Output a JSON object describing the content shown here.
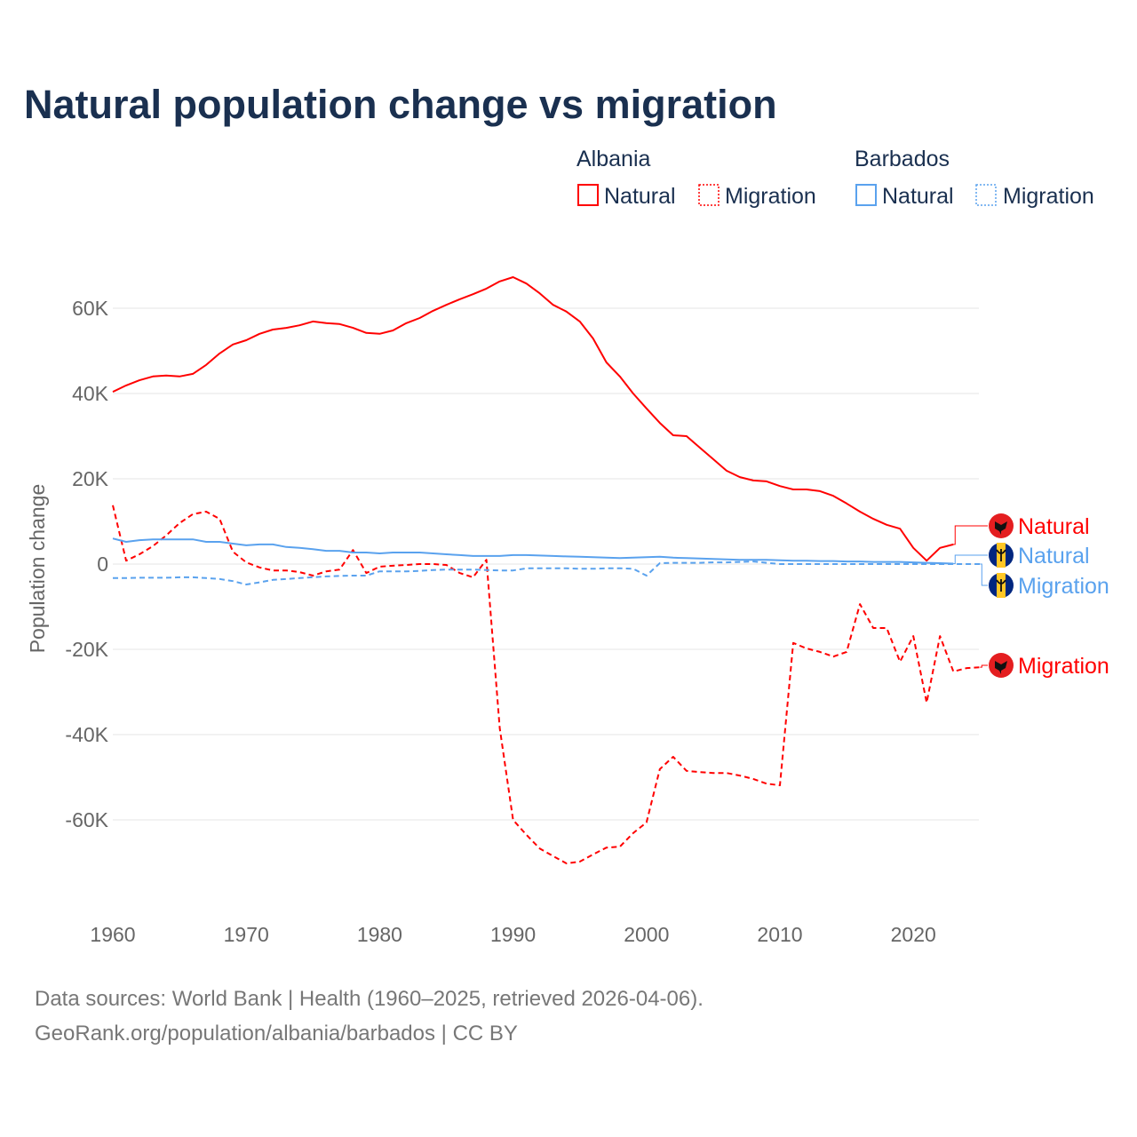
{
  "chart_data": {
    "type": "line",
    "title": "Natural population change vs migration",
    "ylabel": "Population change",
    "xlabel": "",
    "xlim": [
      1960,
      2025
    ],
    "ylim": [
      -80000,
      70000
    ],
    "y_ticks": [
      60000,
      40000,
      20000,
      0,
      -20000,
      -40000,
      -60000
    ],
    "y_tick_labels": [
      "60K",
      "40K",
      "20K",
      "0",
      "-20K",
      "-40K",
      "-60K"
    ],
    "x_ticks": [
      1960,
      1970,
      1980,
      1990,
      2000,
      2010,
      2020
    ],
    "x_tick_labels": [
      "1960",
      "1970",
      "1980",
      "1990",
      "2000",
      "2010",
      "2020"
    ],
    "grid": true,
    "legend": {
      "placement": "top-right",
      "groups": [
        {
          "country": "Albania",
          "entries": [
            "Natural",
            "Migration"
          ]
        },
        {
          "country": "Barbados",
          "entries": [
            "Natural",
            "Migration"
          ]
        }
      ]
    },
    "series": [
      {
        "name": "Natural",
        "country": "Albania",
        "color": "#ff0000",
        "dash": false,
        "start": 1960,
        "values": [
          40.4,
          41.9,
          43.1,
          44,
          44.2,
          44,
          44.6,
          46.7,
          49.4,
          51.5,
          52.5,
          54,
          55,
          55.4,
          56,
          56.9,
          56.5,
          56.3,
          55.4,
          54.2,
          54,
          54.8,
          56.5,
          57.7,
          59.4,
          60.8,
          62.1,
          63.3,
          64.6,
          66.3,
          67.3,
          65.8,
          63.5,
          60.8,
          59.2,
          56.9,
          52.9,
          47.3,
          44,
          40,
          36.5,
          33.1,
          30.2,
          30,
          27.3,
          24.6,
          21.9,
          20.4,
          19.6,
          19.4,
          18.3,
          17.5,
          17.5,
          17.1,
          16,
          14.2,
          12.3,
          10.6,
          9.2,
          8.3,
          3.8,
          0.8,
          3.8,
          4.6
        ]
      },
      {
        "name": "Migration",
        "country": "Albania",
        "color": "#ff0000",
        "dash": true,
        "start": 1960,
        "values": [
          13.8,
          0.8,
          2.3,
          4.2,
          6.7,
          9.6,
          11.7,
          12.3,
          10.6,
          2.9,
          0.4,
          -0.8,
          -1.5,
          -1.5,
          -1.9,
          -2.7,
          -1.7,
          -1.3,
          3.3,
          -2.1,
          -0.6,
          -0.4,
          -0.2,
          0,
          0,
          -0.2,
          -2.1,
          -3.1,
          1,
          -38.5,
          -60,
          -63.5,
          -66.7,
          -68.5,
          -70.2,
          -69.8,
          -68.1,
          -66.5,
          -66.3,
          -63.1,
          -60.6,
          -48.1,
          -45.2,
          -48.5,
          -48.8,
          -49,
          -49,
          -49.6,
          -50.4,
          -51.5,
          -51.9,
          -18.5,
          -19.8,
          -20.6,
          -21.7,
          -20.6,
          -9.4,
          -15,
          -15,
          -22.9,
          -16.9,
          -32.5,
          -16.9,
          -25.2,
          -24.4,
          -24.2
        ]
      },
      {
        "name": "Natural",
        "country": "Barbados",
        "color": "#5aa2ee",
        "dash": false,
        "start": 1960,
        "values": [
          6,
          5.2,
          5.6,
          5.8,
          5.8,
          5.8,
          5.8,
          5.2,
          5.2,
          4.8,
          4.4,
          4.6,
          4.6,
          4,
          3.8,
          3.5,
          3.1,
          3.1,
          2.7,
          2.7,
          2.5,
          2.7,
          2.7,
          2.7,
          2.5,
          2.3,
          2.1,
          1.9,
          1.9,
          1.9,
          2.1,
          2.1,
          2,
          1.9,
          1.8,
          1.7,
          1.6,
          1.5,
          1.4,
          1.5,
          1.6,
          1.7,
          1.5,
          1.4,
          1.3,
          1.2,
          1.1,
          1.0,
          1.0,
          1.0,
          0.9,
          0.8,
          0.8,
          0.7,
          0.7,
          0.6,
          0.6,
          0.5,
          0.5,
          0.5,
          0.4,
          0.3,
          0.2,
          0.1
        ]
      },
      {
        "name": "Migration",
        "country": "Barbados",
        "color": "#5aa2ee",
        "dash": true,
        "start": 1960,
        "values": [
          -3.3,
          -3.3,
          -3.2,
          -3.2,
          -3.2,
          -3.1,
          -3.1,
          -3.3,
          -3.5,
          -4,
          -4.8,
          -4.3,
          -3.7,
          -3.5,
          -3.3,
          -3.1,
          -2.9,
          -2.8,
          -2.7,
          -2.7,
          -1.7,
          -1.7,
          -1.7,
          -1.6,
          -1.4,
          -1.3,
          -1.3,
          -1.3,
          -1.4,
          -1.5,
          -1.5,
          -1.0,
          -1.0,
          -1.0,
          -1.0,
          -1.1,
          -1.1,
          -1.0,
          -1.0,
          -1.1,
          -2.7,
          0.2,
          0.3,
          0.3,
          0.3,
          0.4,
          0.4,
          0.5,
          0.6,
          0.3,
          0,
          0,
          0,
          0,
          0,
          0,
          0,
          0,
          0,
          0,
          0,
          0,
          0,
          0,
          0,
          0
        ]
      }
    ],
    "end_labels": [
      {
        "country": "Albania",
        "label": "Natural"
      },
      {
        "country": "Barbados",
        "label": "Natural"
      },
      {
        "country": "Barbados",
        "label": "Migration"
      },
      {
        "country": "Albania",
        "label": "Migration"
      }
    ],
    "value_unit": "thousands"
  },
  "footer": {
    "source": "Data sources: World Bank | Health (1960–2025, retrieved 2026-04-06).",
    "credit": "GeoRank.org/population/albania/barbados | CC BY"
  }
}
